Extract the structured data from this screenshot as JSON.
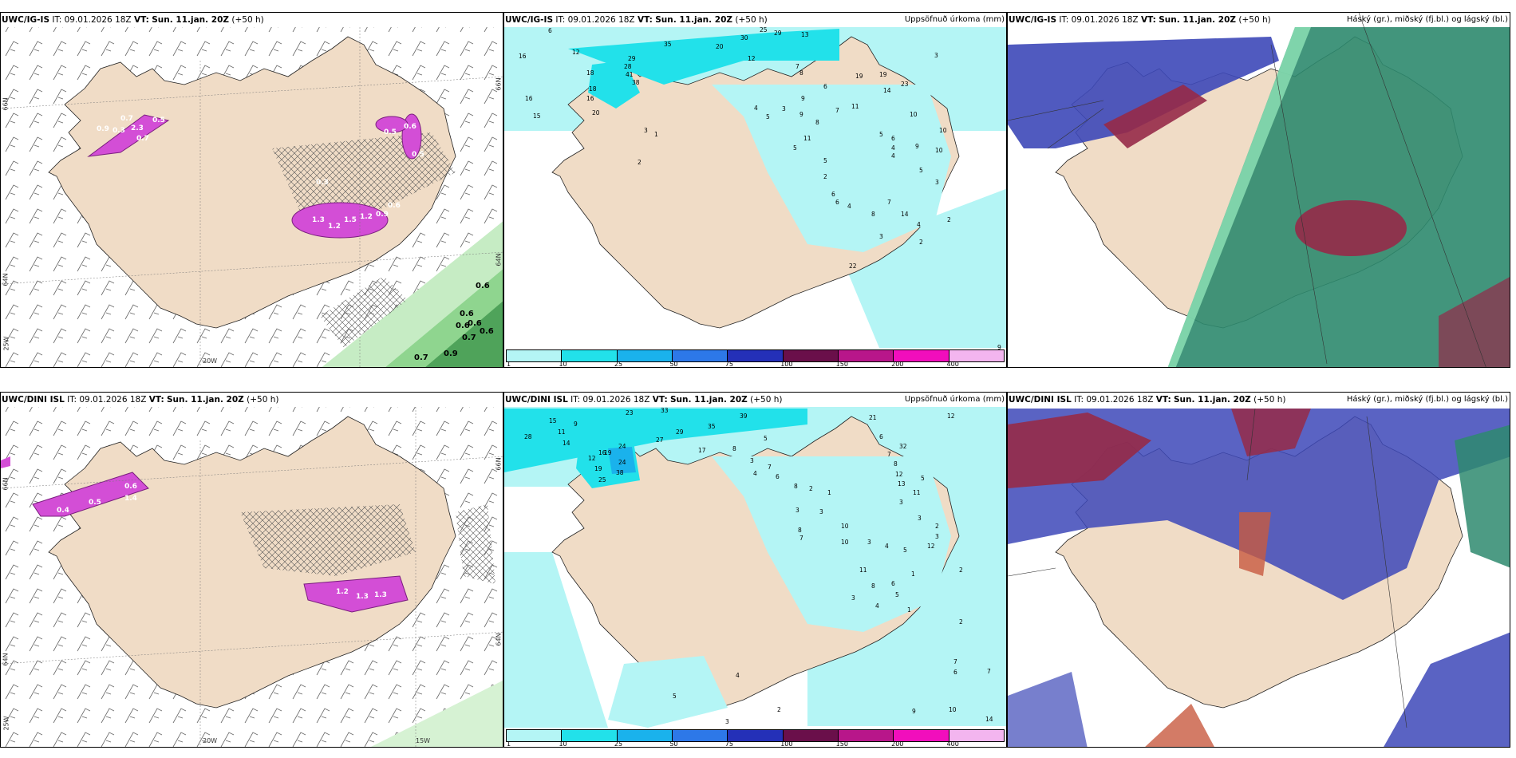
{
  "colors": {
    "land": "#f0dcc6",
    "sea": "#ffffff",
    "precip_light": "#b4f5f5",
    "precip_mid": "#15e0e8",
    "snow_pink": "#d34ed6",
    "rain_green": "#8fd58f",
    "cloud_high": "#3d48b8",
    "cloud_mid": "#962a48",
    "cloud_low": "#2e8a6e"
  },
  "rows": [
    {
      "model": "UWC/IG-IS",
      "panels": [
        {
          "it_label": "IT:",
          "it": "09.01.2026 18Z",
          "vt_label": "VT:",
          "vt": "Sun. 11.jan. 20Z",
          "lead": "(+50 h)",
          "title": ""
        },
        {
          "it_label": "IT:",
          "it": "09.01.2026 18Z",
          "vt_label": "VT:",
          "vt": "Sun. 11.jan. 20Z",
          "lead": "(+50 h)",
          "title": "Uppsöfnuð úrkoma (mm)"
        },
        {
          "it_label": "IT:",
          "it": "09.01.2026 18Z",
          "vt_label": "VT:",
          "vt": "Sun. 11.jan. 20Z",
          "lead": "(+50 h)",
          "title": "Háský (gr.), miðský (fj.bl.) og lágský (bl.)"
        }
      ],
      "grid_labels": {
        "lat_left_1": "66N",
        "lat_left_2": "64N",
        "lat_right_1": "66N",
        "lat_right_2": "64N",
        "lon_left": "25W",
        "lon_bottom": "20W",
        "lon_bottom_2": ""
      },
      "snow_values": [
        "0.7",
        "0.5",
        "0.3",
        "0.9",
        "0.7",
        "2.3",
        "0.5",
        "0.6",
        "0.5",
        "0.3",
        "1.3",
        "1.2",
        "1.2",
        "1.5",
        "0.9",
        "0.6"
      ],
      "rain_values": [
        "0.6",
        "0.6",
        "0.6",
        "0.6",
        "0.6",
        "0.7",
        "0.9",
        "0.7"
      ],
      "precip_values": [
        "6",
        "25",
        "29",
        "13",
        "35",
        "20",
        "30",
        "16",
        "12",
        "12",
        "16",
        "18",
        "29",
        "28",
        "41",
        "38",
        "15",
        "18",
        "16",
        "20",
        "19",
        "19",
        "14",
        "23",
        "3",
        "8",
        "7",
        "9",
        "6",
        "11",
        "4",
        "5",
        "3",
        "7",
        "9",
        "10",
        "3",
        "1",
        "2",
        "8",
        "5",
        "5",
        "11",
        "10",
        "10",
        "9",
        "5",
        "6",
        "4",
        "4",
        "6",
        "5",
        "2",
        "8",
        "7",
        "6",
        "3",
        "4",
        "3",
        "2",
        "14",
        "4",
        "22",
        "2",
        "9"
      ]
    },
    {
      "model": "UWC/DINI ISL",
      "panels": [
        {
          "it_label": "IT:",
          "it": "09.01.2026 18Z",
          "vt_label": "VT:",
          "vt": "Sun. 11.jan. 20Z",
          "lead": "(+50 h)",
          "title": ""
        },
        {
          "it_label": "IT:",
          "it": "09.01.2026 18Z",
          "vt_label": "VT:",
          "vt": "Sun. 11.jan. 20Z",
          "lead": "(+50 h)",
          "title": "Uppsöfnuð úrkoma (mm)"
        },
        {
          "it_label": "IT:",
          "it": "09.01.2026 18Z",
          "vt_label": "VT:",
          "vt": "Sun. 11.jan. 20Z",
          "lead": "(+50 h)",
          "title": "Háský (gr.), miðský (fj.bl.) og lágský (bl.)"
        }
      ],
      "grid_labels": {
        "lat_left_1": "66N",
        "lat_left_2": "64N",
        "lat_right_1": "66N",
        "lat_right_2": "64N",
        "lon_left": "25W",
        "lon_bottom": "20W",
        "lon_bottom_2": "15W"
      },
      "snow_values": [
        "0.6",
        "1.4",
        "0.5",
        "0.4",
        "1.3",
        "1.3",
        "1.2"
      ],
      "rain_values": [],
      "precip_values": [
        "15",
        "23",
        "33",
        "39",
        "9",
        "28",
        "11",
        "29",
        "35",
        "14",
        "16",
        "24",
        "27",
        "17",
        "8",
        "12",
        "19",
        "24",
        "19",
        "38",
        "25",
        "21",
        "12",
        "32",
        "5",
        "3",
        "7",
        "4",
        "6",
        "8",
        "6",
        "7",
        "8",
        "12",
        "13",
        "11",
        "2",
        "1",
        "5",
        "3",
        "3",
        "10",
        "3",
        "3",
        "2",
        "3",
        "8",
        "7",
        "10",
        "12",
        "3",
        "4",
        "5",
        "2",
        "1",
        "11",
        "8",
        "3",
        "4",
        "5",
        "1",
        "6",
        "2",
        "7",
        "6",
        "7",
        "10",
        "9",
        "14",
        "2",
        "3",
        "5",
        "4"
      ]
    }
  ],
  "colorbar": {
    "ticks": [
      "1",
      "10",
      "25",
      "50",
      "75",
      "100",
      "150",
      "200",
      "400"
    ],
    "colors": [
      "#b4f5f5",
      "#22e1ea",
      "#1ab2ec",
      "#2d78e8",
      "#2430b8",
      "#6a0f4a",
      "#b8168a",
      "#f10ebc",
      "#f3b5ef"
    ]
  }
}
